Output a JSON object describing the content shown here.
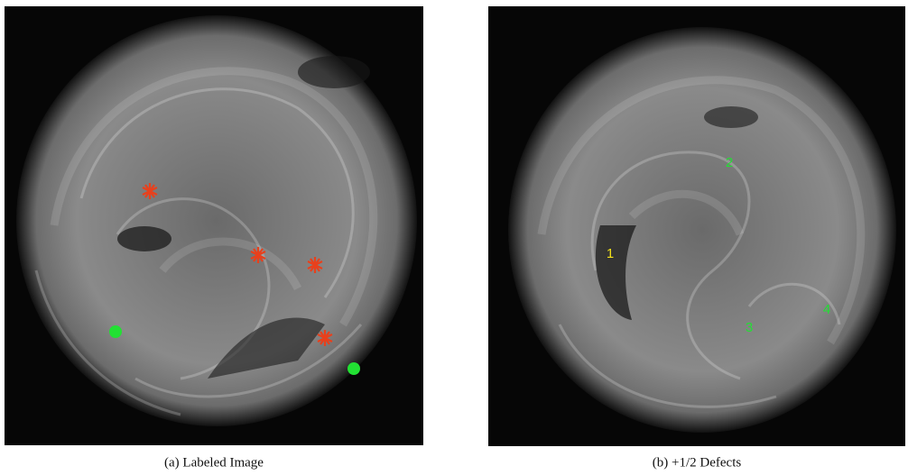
{
  "figure": {
    "panels": [
      {
        "caption": "(a) Labeled Image"
      },
      {
        "caption": "(b) +1/2 Defects",
        "labels": [
          "1",
          "2",
          "3",
          "4"
        ]
      }
    ]
  }
}
